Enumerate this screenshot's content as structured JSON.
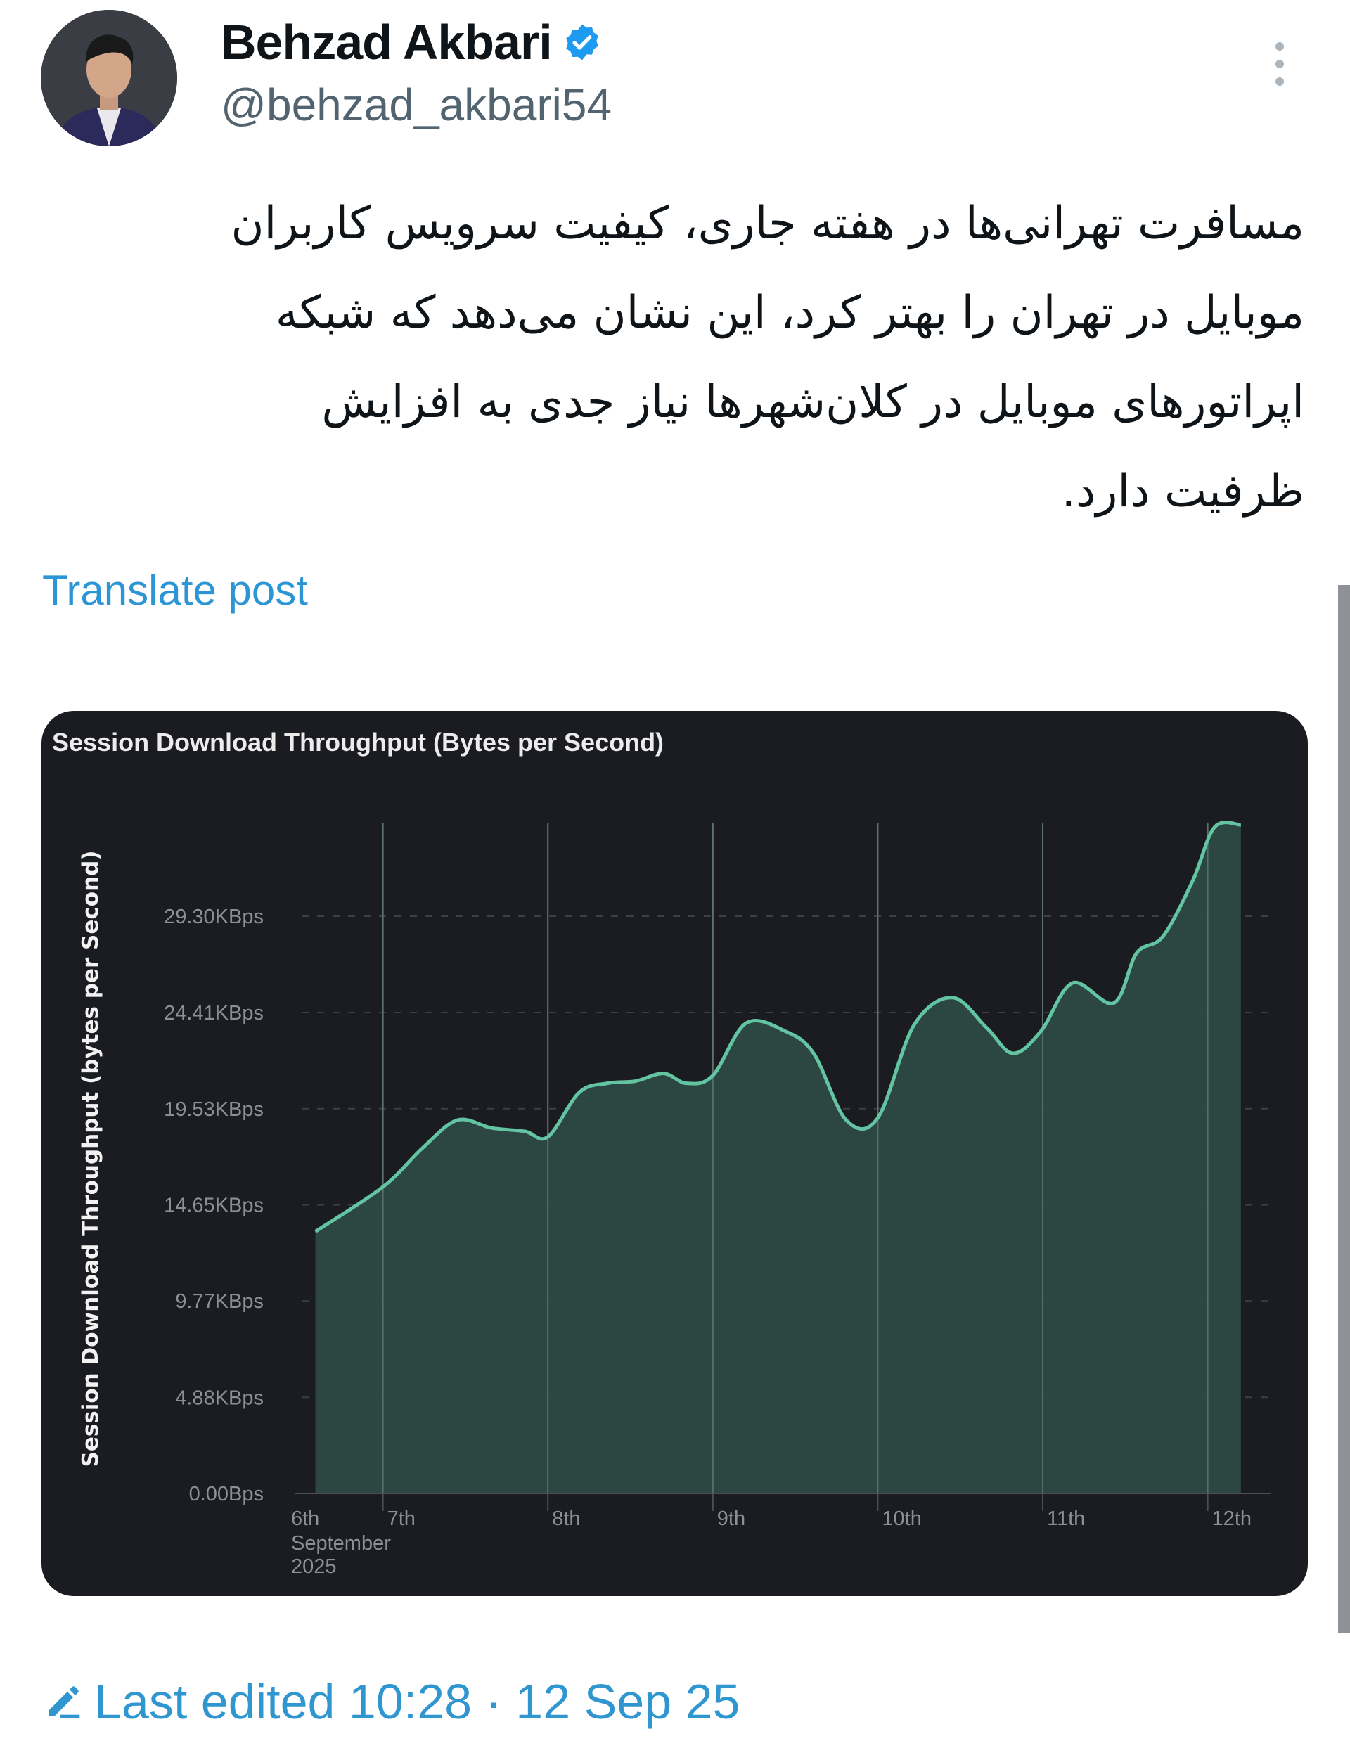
{
  "post": {
    "author_name": "Behzad Akbari",
    "verified": true,
    "handle": "@behzad_akbari54",
    "text_lines": [
      "مسافرت تهرانی‌ها در هفته جاری، کیفیت سرویس کاربران",
      "موبایل در تهران را بهتر کرد، این نشان می‌دهد که شبکه",
      "اپراتورهای موبایل در کلان‌شهرها نیاز جدی به افزایش",
      "ظرفیت دارد."
    ],
    "translate_label": "Translate post",
    "last_edited": "Last edited 10:28 · 12 Sep 25",
    "icons": {
      "verified": "verified-badge-icon",
      "more": "more-vertical-icon",
      "edit": "pencil-icon"
    },
    "colors": {
      "link": "#2b95d6",
      "verified": "#1d9bf0",
      "text": "#0f1419",
      "muted": "#536471"
    }
  },
  "chart_data": {
    "type": "area",
    "title": "Session Download Throughput (Bytes per Second)",
    "ylabel": "Session Download Throughput (bytes per Second)",
    "xlabel": "",
    "x_ticks": [
      "6th",
      "7th",
      "8th",
      "9th",
      "10th",
      "11th",
      "12th"
    ],
    "x_tick_sublabel": [
      "September",
      "2025"
    ],
    "y_ticks": [
      "0.00Bps",
      "4.88KBps",
      "9.77KBps",
      "14.65KBps",
      "19.53KBps",
      "24.41KBps",
      "29.30KBps"
    ],
    "y_tick_values": [
      0,
      4.88,
      9.77,
      14.65,
      19.53,
      24.41,
      29.3
    ],
    "y_unit": "KBps",
    "ylim": [
      0,
      34.5
    ],
    "xlim": [
      "2025-09-06 10:00",
      "2025-09-12 06:00"
    ],
    "grid": {
      "vertical": true,
      "horizontal": "dashed"
    },
    "colors": {
      "line": "#62c4a0",
      "fill": "#2d4a45",
      "background": "#1b1c22"
    },
    "series": [
      {
        "x": [
          "2025-09-06 14:10",
          "2025-09-07 00:00",
          "2025-09-07 05:45",
          "2025-09-07 10:50",
          "2025-09-07 15:50",
          "2025-09-07 20:40",
          "2025-09-08 00:00",
          "2025-09-08 04:35",
          "2025-09-08 08:40",
          "2025-09-08 12:45",
          "2025-09-08 16:50",
          "2025-09-08 20:10",
          "2025-09-09 00:00",
          "2025-09-09 04:50",
          "2025-09-09 10:30",
          "2025-09-09 14:40",
          "2025-09-09 19:25",
          "2025-09-10 00:00",
          "2025-09-10 05:15",
          "2025-09-10 10:50",
          "2025-09-10 15:50",
          "2025-09-10 19:40",
          "2025-09-10 23:45",
          "2025-09-11 04:20",
          "2025-09-11 10:20",
          "2025-09-11 13:40",
          "2025-09-11 17:30",
          "2025-09-11 21:50",
          "2025-09-12 01:00",
          "2025-09-12 04:50"
        ],
        "values": [
          13.29,
          15.56,
          17.53,
          18.95,
          18.55,
          18.38,
          18.1,
          20.36,
          20.82,
          20.93,
          21.32,
          20.82,
          21.21,
          23.87,
          23.47,
          22.34,
          18.95,
          19.06,
          23.76,
          25.17,
          23.64,
          22.34,
          23.47,
          25.91,
          24.89,
          27.43,
          28.28,
          31.11,
          33.82,
          33.94
        ]
      }
    ]
  }
}
